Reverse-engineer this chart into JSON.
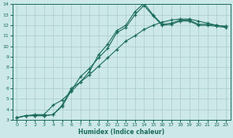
{
  "xlabel": "Humidex (Indice chaleur)",
  "bg_color": "#cce8e8",
  "line_color": "#1a6b5a",
  "grid_color": "#aacccc",
  "xlim": [
    -0.5,
    23.5
  ],
  "ylim": [
    3,
    14
  ],
  "line1": {
    "x": [
      0,
      1,
      2,
      3,
      4,
      5,
      6,
      7,
      8,
      9,
      10,
      11,
      12,
      13,
      14,
      15,
      16,
      17,
      18,
      19,
      20,
      21,
      22,
      23
    ],
    "y": [
      3.2,
      3.4,
      3.4,
      3.4,
      3.5,
      4.4,
      6.0,
      6.6,
      7.6,
      9.2,
      10.2,
      11.5,
      12.0,
      13.3,
      14.1,
      13.0,
      12.1,
      12.2,
      12.5,
      12.5,
      12.1,
      12.1,
      12.0,
      11.9
    ]
  },
  "line2": {
    "x": [
      0,
      1,
      2,
      3,
      4,
      5,
      6,
      7,
      8,
      9,
      10,
      11,
      12,
      13,
      14,
      15,
      16,
      17,
      18,
      19,
      20,
      21,
      22,
      23
    ],
    "y": [
      3.2,
      3.4,
      3.4,
      3.4,
      3.5,
      4.3,
      5.8,
      7.1,
      7.9,
      8.9,
      9.8,
      11.3,
      11.8,
      13.0,
      13.9,
      12.9,
      12.0,
      12.1,
      12.4,
      12.4,
      12.0,
      12.0,
      11.9,
      11.8
    ]
  },
  "line3": {
    "x": [
      0,
      1,
      2,
      3,
      4,
      5,
      6,
      7,
      8,
      9,
      10,
      11,
      12,
      13,
      14,
      15,
      16,
      17,
      18,
      19,
      20,
      21,
      22,
      23
    ],
    "y": [
      3.2,
      3.4,
      3.5,
      3.5,
      4.4,
      4.9,
      5.7,
      6.6,
      7.3,
      8.1,
      8.9,
      9.7,
      10.5,
      11.0,
      11.6,
      12.0,
      12.3,
      12.5,
      12.6,
      12.6,
      12.4,
      12.2,
      12.0,
      11.9
    ]
  }
}
